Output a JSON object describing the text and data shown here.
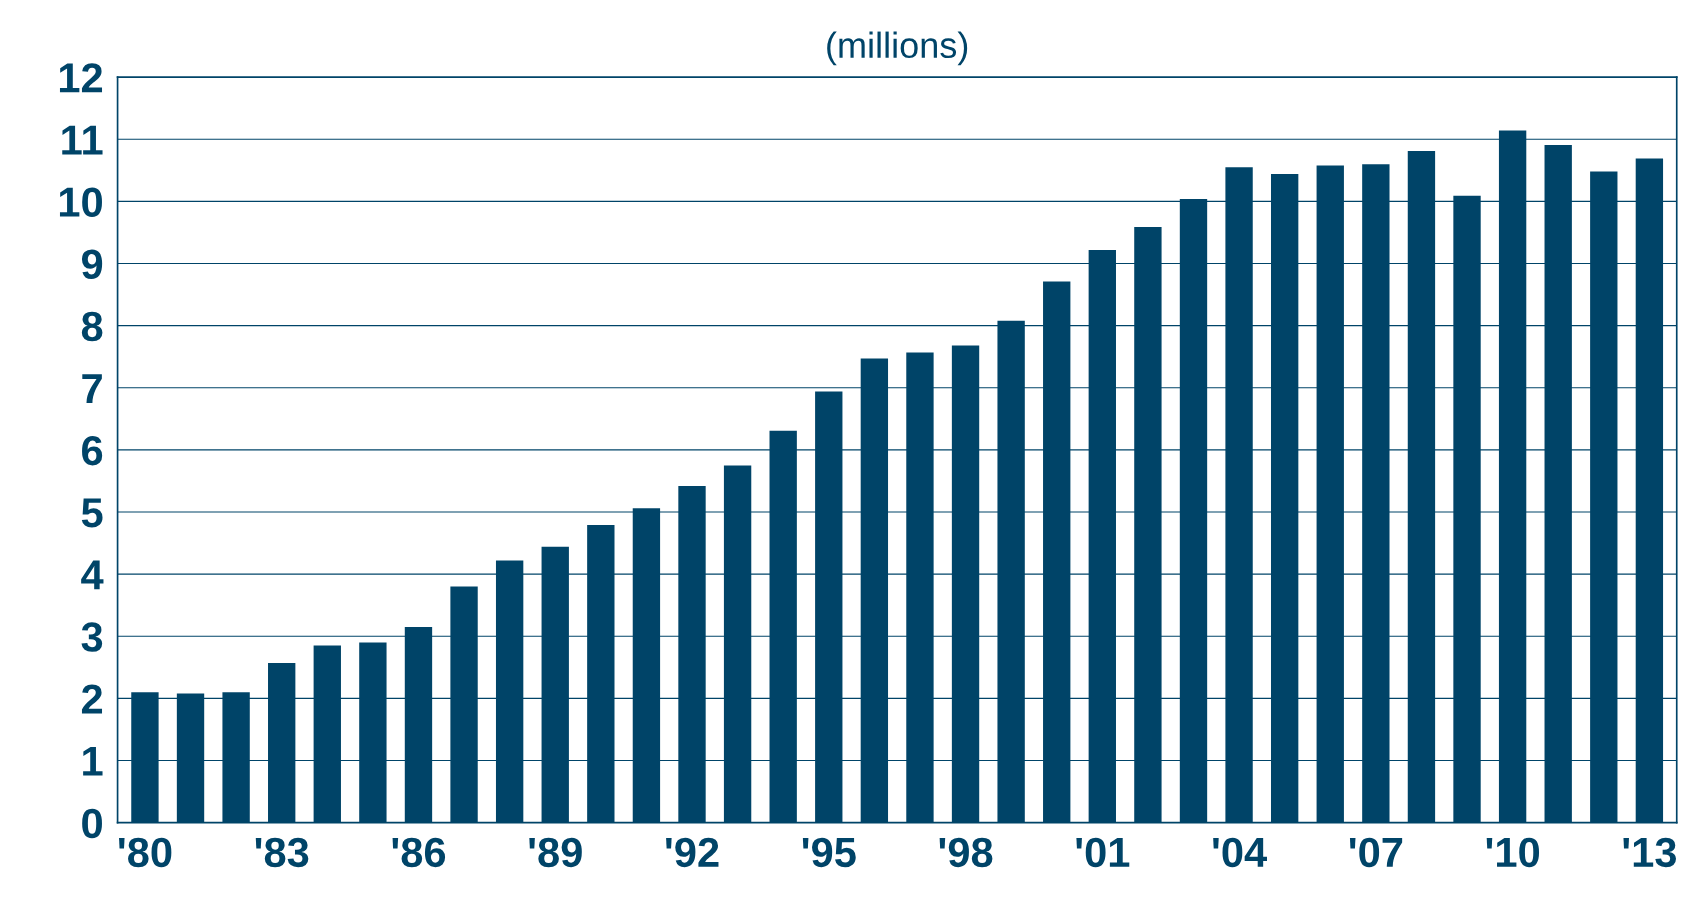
{
  "chart_data": {
    "type": "bar",
    "title": "(millions)",
    "categories": [
      "'80",
      null,
      null,
      "'83",
      null,
      null,
      "'86",
      null,
      null,
      "'89",
      null,
      null,
      "'92",
      null,
      null,
      "'95",
      null,
      null,
      "'98",
      null,
      null,
      "'01",
      null,
      null,
      "'04",
      null,
      null,
      "'07",
      null,
      null,
      "'10",
      null,
      null,
      "'13"
    ],
    "values": [
      2.1,
      2.08,
      2.1,
      2.57,
      2.85,
      2.9,
      3.15,
      3.8,
      4.22,
      4.44,
      4.79,
      5.06,
      5.42,
      5.75,
      6.31,
      6.94,
      7.47,
      7.57,
      7.68,
      8.08,
      8.71,
      9.22,
      9.59,
      10.04,
      10.55,
      10.44,
      10.58,
      10.6,
      10.81,
      10.09,
      11.14,
      10.91,
      10.48,
      10.69
    ],
    "color": "#004468",
    "ylim": [
      0,
      12
    ],
    "yticks": [
      0,
      1,
      2,
      3,
      4,
      5,
      6,
      7,
      8,
      9,
      10,
      11,
      12
    ],
    "grid": "y"
  }
}
